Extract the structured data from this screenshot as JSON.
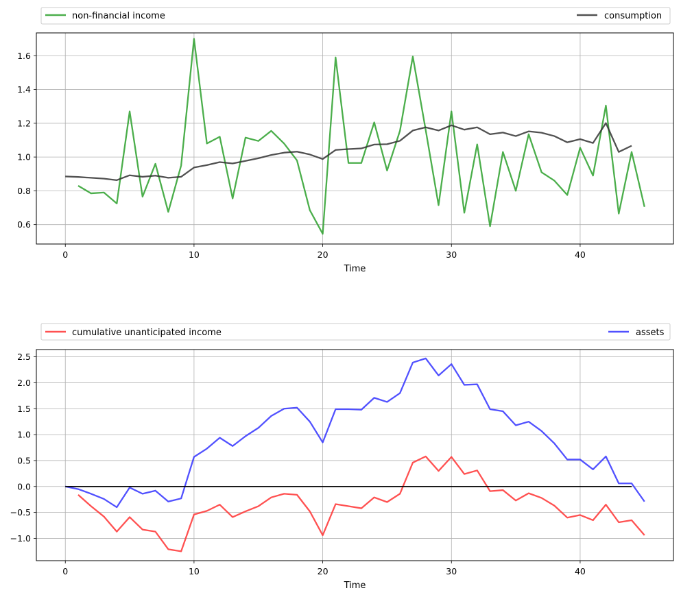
{
  "chart_data": [
    {
      "type": "line",
      "xlabel": "Time",
      "ylabel": "",
      "xlim": [
        -2.25,
        47.25
      ],
      "ylim": [
        0.485,
        1.735
      ],
      "xticks": [
        0,
        10,
        20,
        30,
        40
      ],
      "yticks": [
        0.6,
        0.8,
        1.0,
        1.2,
        1.4,
        1.6
      ],
      "grid": true,
      "legend_position": "top",
      "series": [
        {
          "name": "non-financial income",
          "color": "#2ca02c",
          "x_start": 1,
          "values": [
            0.83,
            0.785,
            0.79,
            0.725,
            1.27,
            0.765,
            0.96,
            0.675,
            0.95,
            1.7,
            1.08,
            1.12,
            0.755,
            1.115,
            1.095,
            1.155,
            1.08,
            0.98,
            0.685,
            0.545,
            1.59,
            0.965,
            0.965,
            1.205,
            0.92,
            1.155,
            1.595,
            1.16,
            0.715,
            1.27,
            0.67,
            1.075,
            0.59,
            1.03,
            0.8,
            1.135,
            0.91,
            0.86,
            0.775,
            1.055,
            0.89,
            1.305,
            0.665,
            1.03,
            0.705
          ]
        },
        {
          "name": "consumption",
          "color": "#333333",
          "x_start": 0,
          "values": [
            0.885,
            0.882,
            0.877,
            0.872,
            0.863,
            0.892,
            0.883,
            0.89,
            0.877,
            0.883,
            0.938,
            0.952,
            0.97,
            0.962,
            0.977,
            0.993,
            1.012,
            1.026,
            1.032,
            1.015,
            0.988,
            1.042,
            1.047,
            1.051,
            1.074,
            1.076,
            1.096,
            1.157,
            1.176,
            1.157,
            1.188,
            1.162,
            1.176,
            1.135,
            1.145,
            1.124,
            1.152,
            1.144,
            1.124,
            1.087,
            1.106,
            1.083,
            1.201,
            1.03,
            1.067
          ]
        }
      ]
    },
    {
      "type": "line",
      "xlabel": "Time",
      "ylabel": "",
      "xlim": [
        -2.25,
        47.25
      ],
      "ylim": [
        -1.43,
        2.64
      ],
      "xticks": [
        0,
        10,
        20,
        30,
        40
      ],
      "yticks": [
        -1.0,
        -0.5,
        0.0,
        0.5,
        1.0,
        1.5,
        2.0,
        2.5
      ],
      "grid": true,
      "legend_position": "top",
      "series": [
        {
          "name": "cumulative unanticipated income",
          "color": "#ff3333",
          "x_start": 1,
          "values": [
            -0.16,
            -0.38,
            -0.58,
            -0.87,
            -0.59,
            -0.83,
            -0.87,
            -1.21,
            -1.25,
            -0.54,
            -0.47,
            -0.35,
            -0.59,
            -0.48,
            -0.38,
            -0.21,
            -0.14,
            -0.16,
            -0.48,
            -0.94,
            -0.34,
            -0.38,
            -0.42,
            -0.21,
            -0.3,
            -0.14,
            0.46,
            0.58,
            0.3,
            0.57,
            0.24,
            0.31,
            -0.09,
            -0.07,
            -0.27,
            -0.13,
            -0.22,
            -0.37,
            -0.6,
            -0.55,
            -0.65,
            -0.35,
            -0.69,
            -0.65,
            -0.94
          ]
        },
        {
          "name": "assets",
          "color": "#3333ff",
          "x_start": 0,
          "values": [
            0.0,
            -0.05,
            -0.14,
            -0.24,
            -0.4,
            -0.02,
            -0.14,
            -0.08,
            -0.29,
            -0.23,
            0.57,
            0.73,
            0.94,
            0.78,
            0.97,
            1.13,
            1.36,
            1.5,
            1.52,
            1.25,
            0.85,
            1.49,
            1.49,
            1.48,
            1.71,
            1.63,
            1.8,
            2.39,
            2.47,
            2.14,
            2.36,
            1.96,
            1.97,
            1.49,
            1.45,
            1.18,
            1.25,
            1.07,
            0.83,
            0.52,
            0.52,
            0.33,
            0.58,
            0.06,
            0.06,
            -0.29
          ]
        },
        {
          "name": "zero line",
          "color": "#000000",
          "x_start": 0,
          "legend": false,
          "values": [
            0,
            0
          ]
        }
      ]
    }
  ]
}
